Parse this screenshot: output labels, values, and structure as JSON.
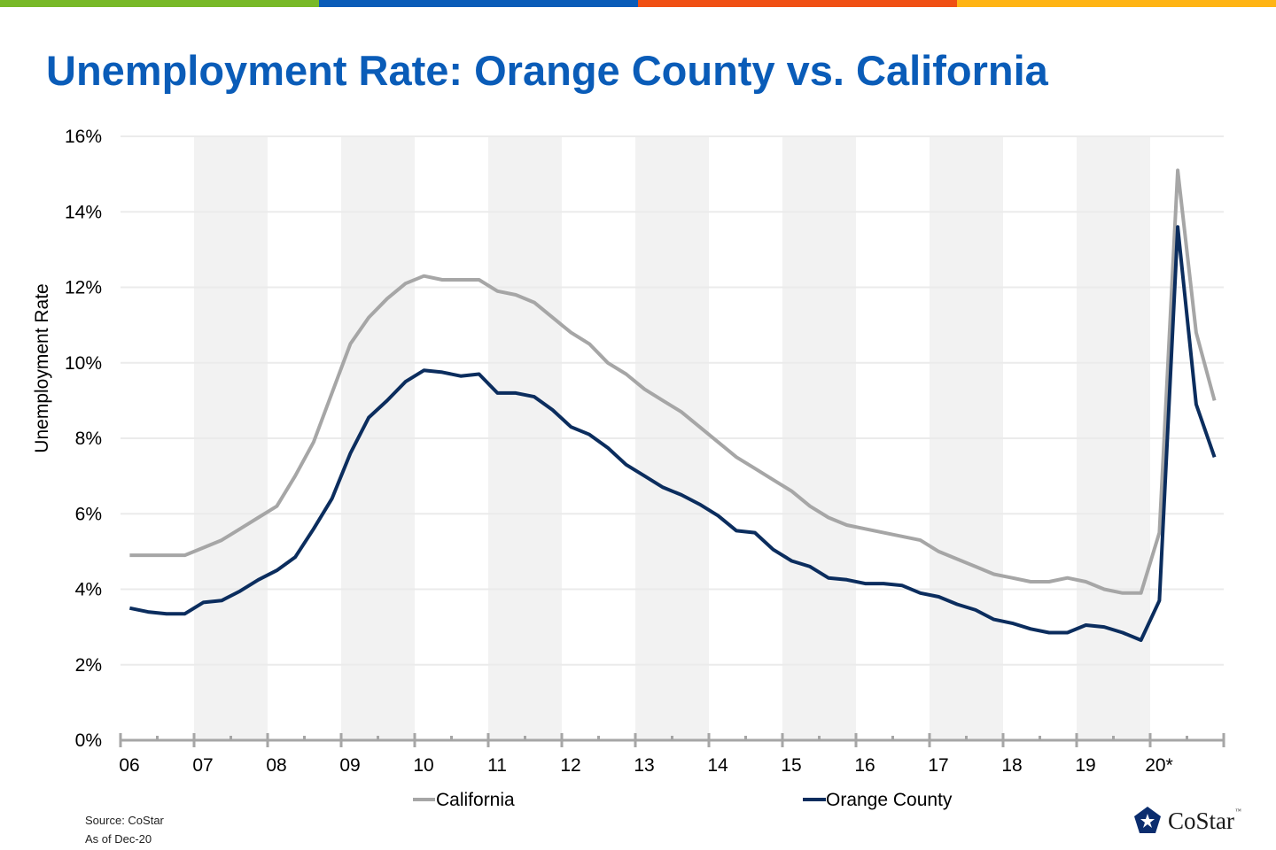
{
  "brand_colors": [
    "#78b928",
    "#0a5cb8",
    "#f05014",
    "#ffb414"
  ],
  "title": "Unemployment Rate: Orange County vs. California",
  "footer": {
    "source": "Source: CoStar",
    "as_of": "As of Dec-20"
  },
  "logo": {
    "text": "CoStar",
    "tm": "™"
  },
  "chart_data": {
    "type": "line",
    "title": "Unemployment Rate: Orange County vs. California",
    "ylabel": "Unemployment Rate",
    "xlabel": "",
    "ylim": [
      0,
      16
    ],
    "yticks": [
      "0%",
      "2%",
      "4%",
      "6%",
      "8%",
      "10%",
      "12%",
      "14%",
      "16%"
    ],
    "ytick_values": [
      0,
      2,
      4,
      6,
      8,
      10,
      12,
      14,
      16
    ],
    "xticks": [
      "06",
      "07",
      "08",
      "09",
      "10",
      "11",
      "12",
      "13",
      "14",
      "15",
      "16",
      "17",
      "18",
      "19",
      "20*"
    ],
    "x_frequency": "quarterly",
    "x_range": [
      "2006 Q1",
      "2020 Q4"
    ],
    "grid": "horizontal",
    "alternating_year_shading": true,
    "legend_position": "bottom",
    "series": [
      {
        "name": "California",
        "color": "#a6a6a6",
        "values": [
          4.9,
          4.9,
          4.9,
          4.9,
          5.1,
          5.3,
          5.6,
          5.9,
          6.2,
          7.0,
          7.9,
          9.2,
          10.5,
          11.2,
          11.7,
          12.1,
          12.3,
          12.2,
          12.2,
          12.2,
          11.9,
          11.8,
          11.6,
          11.2,
          10.8,
          10.5,
          10.0,
          9.7,
          9.3,
          9.0,
          8.7,
          8.3,
          7.9,
          7.5,
          7.2,
          6.9,
          6.6,
          6.2,
          5.9,
          5.7,
          5.6,
          5.5,
          5.4,
          5.3,
          5.0,
          4.8,
          4.6,
          4.4,
          4.3,
          4.2,
          4.2,
          4.3,
          4.2,
          4.0,
          3.9,
          3.9,
          5.5,
          15.1,
          10.8,
          9.0
        ]
      },
      {
        "name": "Orange County",
        "color": "#0b2d5e",
        "values": [
          3.5,
          3.4,
          3.35,
          3.35,
          3.65,
          3.7,
          3.95,
          4.25,
          4.5,
          4.85,
          5.6,
          6.4,
          7.6,
          8.55,
          9.0,
          9.5,
          9.8,
          9.75,
          9.65,
          9.7,
          9.2,
          9.2,
          9.1,
          8.75,
          8.3,
          8.1,
          7.75,
          7.3,
          7.0,
          6.7,
          6.5,
          6.25,
          5.95,
          5.55,
          5.5,
          5.05,
          4.75,
          4.6,
          4.3,
          4.25,
          4.15,
          4.15,
          4.1,
          3.9,
          3.8,
          3.6,
          3.45,
          3.2,
          3.1,
          2.95,
          2.85,
          2.85,
          3.05,
          3.0,
          2.85,
          2.65,
          3.7,
          13.6,
          8.9,
          7.5
        ]
      }
    ]
  }
}
